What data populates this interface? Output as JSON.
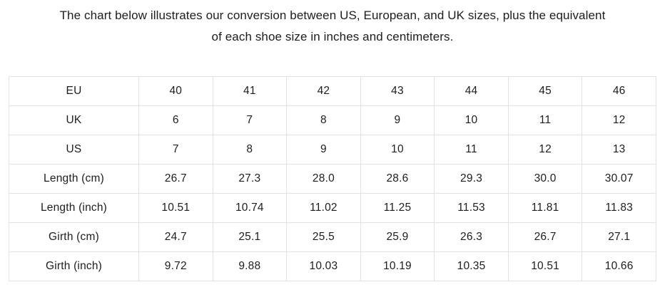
{
  "heading": {
    "line1": "The chart below illustrates our conversion between US, European, and UK sizes, plus the equivalent",
    "line2": "of each shoe size in inches and centimeters."
  },
  "chart_data": {
    "type": "table",
    "title": "The chart below illustrates our conversion between US, European, and UK sizes, plus the equivalent of each shoe size in inches and centimeters.",
    "row_headers": [
      "EU",
      "UK",
      "US",
      "Length (cm)",
      "Length (inch)",
      "Girth (cm)",
      "Girth (inch)"
    ],
    "rows": [
      {
        "label": "EU",
        "values": [
          "40",
          "41",
          "42",
          "43",
          "44",
          "45",
          "46"
        ]
      },
      {
        "label": "UK",
        "values": [
          "6",
          "7",
          "8",
          "9",
          "10",
          "11",
          "12"
        ]
      },
      {
        "label": "US",
        "values": [
          "7",
          "8",
          "9",
          "10",
          "11",
          "12",
          "13"
        ]
      },
      {
        "label": "Length (cm)",
        "values": [
          "26.7",
          "27.3",
          "28.0",
          "28.6",
          "29.3",
          "30.0",
          "30.07"
        ]
      },
      {
        "label": "Length (inch)",
        "values": [
          "10.51",
          "10.74",
          "11.02",
          "11.25",
          "11.53",
          "11.81",
          "11.83"
        ]
      },
      {
        "label": "Girth (cm)",
        "values": [
          "24.7",
          "25.1",
          "25.5",
          "25.9",
          "26.3",
          "26.7",
          "27.1"
        ]
      },
      {
        "label": "Girth (inch)",
        "values": [
          "9.72",
          "9.88",
          "10.03",
          "10.19",
          "10.35",
          "10.51",
          "10.66"
        ]
      }
    ]
  },
  "colors": {
    "background": "#ffffff",
    "text": "#1d1d1d",
    "border": "#e2e2e2"
  }
}
